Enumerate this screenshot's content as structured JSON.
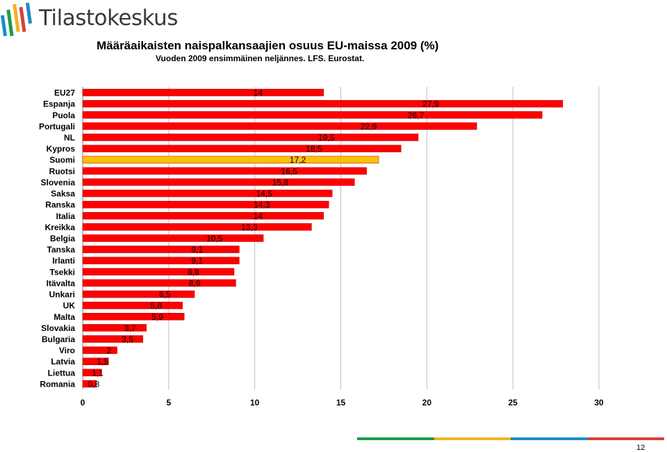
{
  "brand": {
    "name": "Tilastokeskus"
  },
  "page_number": "12",
  "footer_stripe_colors": [
    "#1a9c4b",
    "#f0b323",
    "#1f8cc8",
    "#d9403a"
  ],
  "chart_data": {
    "type": "bar",
    "orientation": "horizontal",
    "title": "Määräaikaisten naispalkansaajien osuus EU-maissa 2009 (%)",
    "subtitle": "Vuoden 2009 ensimmäinen neljännes. LFS. Eurostat.",
    "xlabel": "",
    "ylabel": "",
    "xlim": [
      0,
      30
    ],
    "xticks": [
      "0",
      "5",
      "10",
      "15",
      "20",
      "25",
      "30"
    ],
    "grid": true,
    "categories": [
      "EU27",
      "Espanja",
      "Puola",
      "Portugali",
      "NL",
      "Kypros",
      "Suomi",
      "Ruotsi",
      "Slovenia",
      "Saksa",
      "Ranska",
      "Italia",
      "Kreikka",
      "Belgia",
      "Tanska",
      "Irlanti",
      "Tsekki",
      "Itävalta",
      "Unkari",
      "UK",
      "Malta",
      "Slovakia",
      "Bulgaria",
      "Viro",
      "Latvia",
      "Liettua",
      "Romania"
    ],
    "values": [
      14,
      27.9,
      26.7,
      22.9,
      19.5,
      18.5,
      17.2,
      16.5,
      15.8,
      14.5,
      14.3,
      14,
      13.3,
      10.5,
      9.1,
      9.1,
      8.8,
      8.9,
      6.5,
      5.8,
      5.9,
      3.7,
      3.5,
      2,
      1.5,
      1.1,
      0.8
    ],
    "value_labels": [
      "14",
      "27,9",
      "26,7",
      "22,9",
      "19,5",
      "18,5",
      "17,2",
      "16,5",
      "15,8",
      "14,5",
      "14,3",
      "14",
      "13,3",
      "10,5",
      "9,1",
      "9,1",
      "8,8",
      "8,9",
      "6,5",
      "5,8",
      "5,9",
      "3,7",
      "3,5",
      "2",
      "1,5",
      "1,1",
      "0,8"
    ],
    "colors": {
      "default": "#ff0000",
      "highlight": "#ffc000",
      "highlight_category": "Suomi",
      "grid": "#bfbfbf"
    }
  }
}
